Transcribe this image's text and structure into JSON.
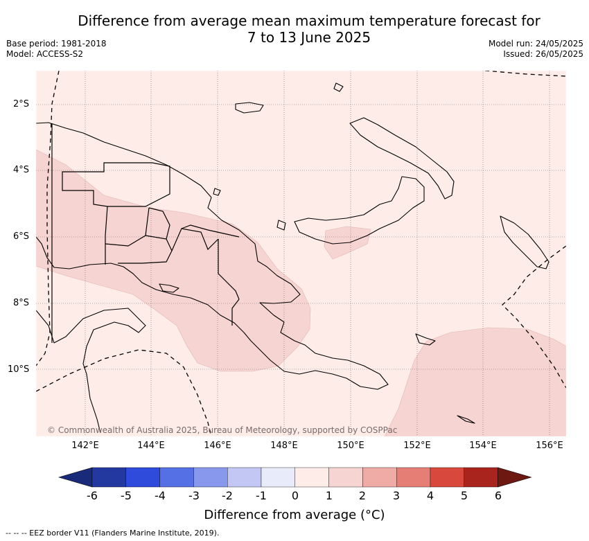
{
  "title_line1": "Difference from average mean maximum temperature forecast for",
  "title_line2": "7 to 13 June 2025",
  "base_period": "Base period: 1981-2018",
  "model": "Model: ACCESS-S2",
  "model_run": "Model run: 24/05/2025",
  "issued": "Issued: 26/05/2025",
  "lat_labels": [
    "2°S",
    "4°S",
    "6°S",
    "8°S",
    "10°S"
  ],
  "lon_labels": [
    "142°E",
    "144°E",
    "146°E",
    "148°E",
    "150°E",
    "152°E",
    "154°E",
    "156°E"
  ],
  "copyright": "© Commonwealth of Australia 2025, Bureau of Meteorology, supported by COSPPac",
  "colorbar": {
    "ticks": [
      "-6",
      "-5",
      "-4",
      "-3",
      "-2",
      "-1",
      "0",
      "1",
      "2",
      "3",
      "4",
      "5",
      "6"
    ],
    "colors": [
      "#23399f",
      "#2e4bdb",
      "#5470e4",
      "#8898ec",
      "#c2c8f3",
      "#e8ecfa",
      "#fdece8",
      "#f6d4d1",
      "#efaca6",
      "#e57f76",
      "#d9483c",
      "#a9241d"
    ],
    "low_extend_color": "#1a2a7a",
    "high_extend_color": "#6e1812",
    "label": "Difference from average (°C)"
  },
  "eez_note": "--  --  -- EEZ border V11 (Flanders Marine Institute, 2019).",
  "background_anomaly_color": "#fdece8",
  "anomaly_1_to_2_color": "#f6d4d1"
}
